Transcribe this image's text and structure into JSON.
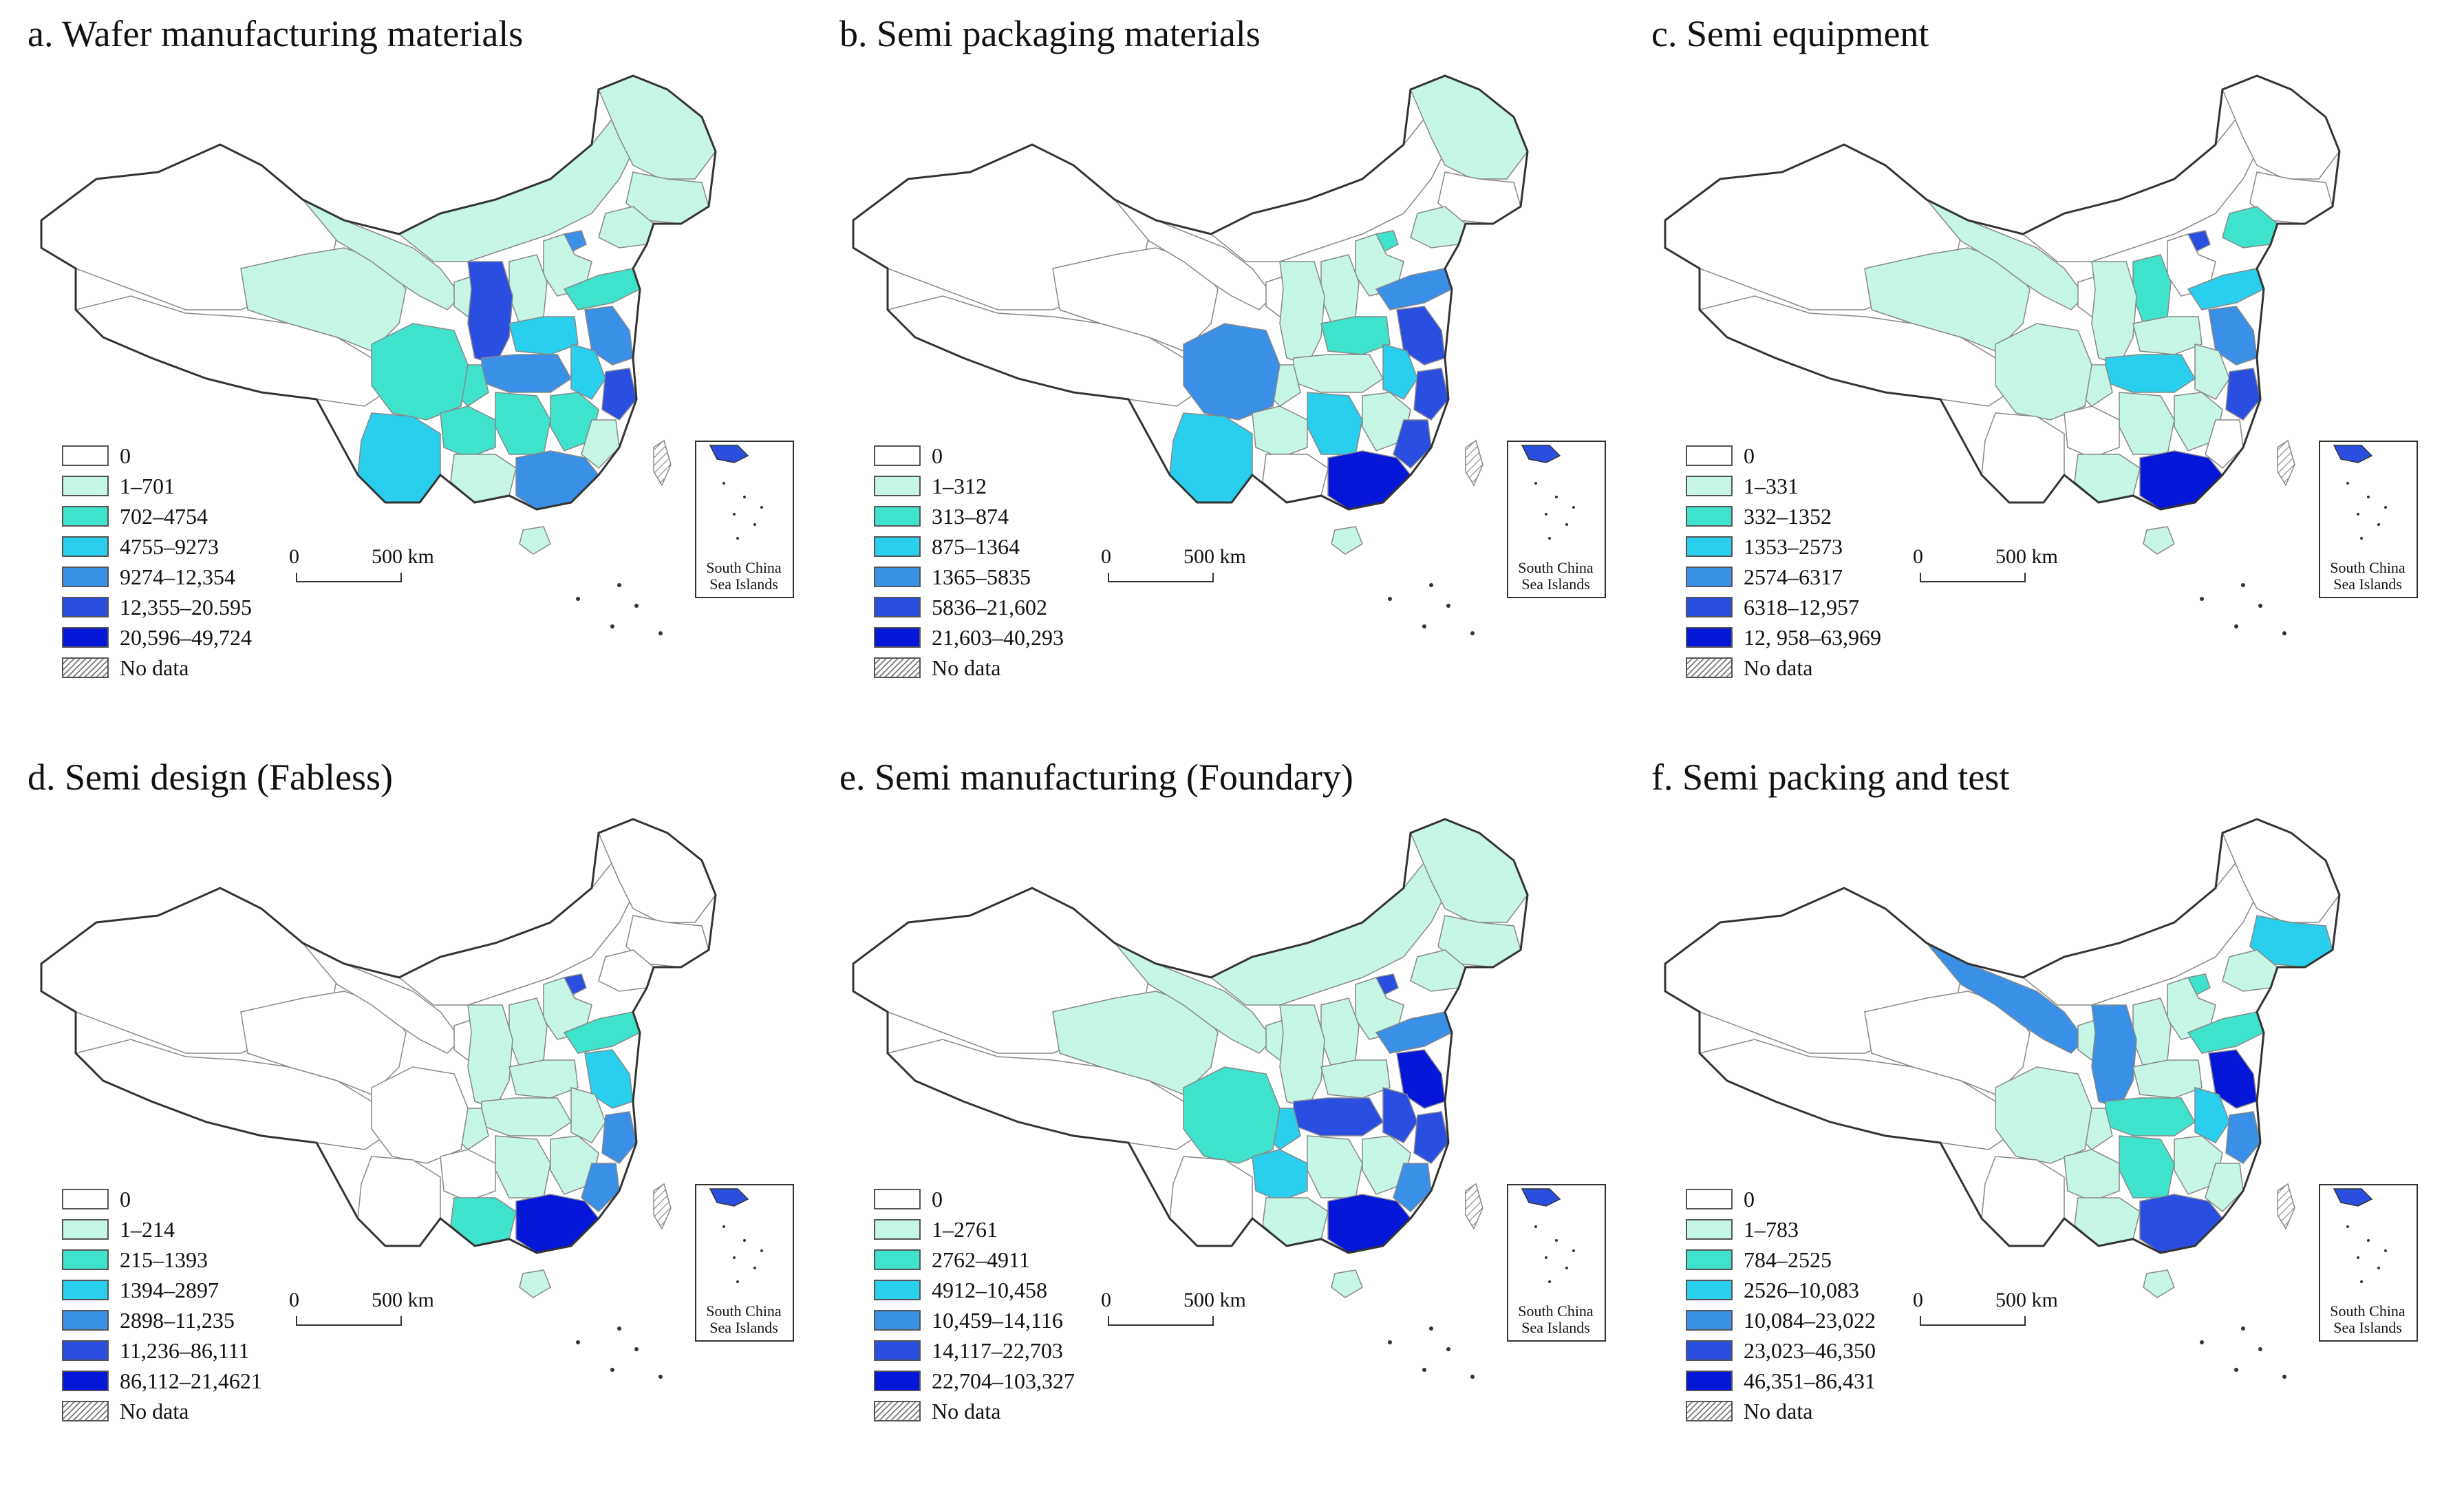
{
  "panels": [
    {
      "title": "a. Wafer manufacturing materials",
      "legend": [
        "0",
        "1–701",
        "702–4754",
        "4755–9273",
        "9274–12,354",
        "12,355–20.595",
        "20,596–49,724",
        "No data"
      ],
      "level_by_region": {
        "xj": 0,
        "xz": 0,
        "qh": 1,
        "gs": 1,
        "nm": 1,
        "hlj": 1,
        "jl": 1,
        "ln": 1,
        "hb": 1,
        "sx": 1,
        "sax": 5,
        "nx": 1,
        "sc": 2,
        "cq": 2,
        "yn": 3,
        "gz": 2,
        "gx": 1,
        "gd": 4,
        "hn": 2,
        "hub": 4,
        "henan": 3,
        "sd": 2,
        "js": 4,
        "zj": 5,
        "ah": 3,
        "jx": 2,
        "fj": 1,
        "bj": 4,
        "hi": 1,
        "tw": -1
      }
    },
    {
      "title": "b. Semi packaging materials",
      "legend": [
        "0",
        "1–312",
        "313–874",
        "875–1364",
        "1365–5835",
        "5836–21,602",
        "21,603–40,293",
        "No data"
      ],
      "level_by_region": {
        "xj": 0,
        "xz": 0,
        "qh": 0,
        "gs": 0,
        "nm": 0,
        "hlj": 1,
        "jl": 0,
        "ln": 1,
        "hb": 1,
        "sx": 1,
        "sax": 1,
        "nx": 0,
        "sc": 4,
        "cq": 1,
        "yn": 3,
        "gz": 1,
        "gx": 0,
        "gd": 6,
        "hn": 3,
        "hub": 1,
        "henan": 2,
        "sd": 4,
        "js": 5,
        "zj": 5,
        "ah": 3,
        "jx": 1,
        "fj": 5,
        "bj": 2,
        "hi": 1,
        "tw": -1
      }
    },
    {
      "title": "c. Semi equipment",
      "legend": [
        "0",
        "1–331",
        "332–1352",
        "1353–2573",
        "2574–6317",
        "6318–12,957",
        "12, 958–63,969",
        "No data"
      ],
      "level_by_region": {
        "xj": 0,
        "xz": 0,
        "qh": 1,
        "gs": 1,
        "nm": 0,
        "hlj": 0,
        "jl": 0,
        "ln": 2,
        "hb": 0,
        "sx": 2,
        "sax": 1,
        "nx": 0,
        "sc": 1,
        "cq": 1,
        "yn": 0,
        "gz": 0,
        "gx": 1,
        "gd": 6,
        "hn": 1,
        "hub": 3,
        "henan": 1,
        "sd": 3,
        "js": 4,
        "zj": 5,
        "ah": 1,
        "jx": 1,
        "fj": 0,
        "bj": 5,
        "hi": 1,
        "tw": -1
      }
    },
    {
      "title": "d. Semi design (Fabless)",
      "legend": [
        "0",
        "1–214",
        "215–1393",
        "1394–2897",
        "2898–11,235",
        "11,236–86,111",
        "86,112–21,4621",
        "No data"
      ],
      "level_by_region": {
        "xj": 0,
        "xz": 0,
        "qh": 0,
        "gs": 0,
        "nm": 0,
        "hlj": 0,
        "jl": 0,
        "ln": 0,
        "hb": 1,
        "sx": 1,
        "sax": 1,
        "nx": 0,
        "sc": 0,
        "cq": 1,
        "yn": 0,
        "gz": 0,
        "gx": 2,
        "gd": 6,
        "hn": 1,
        "hub": 1,
        "henan": 1,
        "sd": 2,
        "js": 3,
        "zj": 4,
        "ah": 1,
        "jx": 1,
        "fj": 4,
        "bj": 5,
        "hi": 1,
        "tw": -1
      }
    },
    {
      "title": "e. Semi manufacturing (Foundary)",
      "legend": [
        "0",
        "1–2761",
        "2762–4911",
        "4912–10,458",
        "10,459–14,116",
        "14,117–22,703",
        "22,704–103,327",
        "No data"
      ],
      "level_by_region": {
        "xj": 0,
        "xz": 0,
        "qh": 1,
        "gs": 1,
        "nm": 1,
        "hlj": 1,
        "jl": 1,
        "ln": 1,
        "hb": 1,
        "sx": 1,
        "sax": 1,
        "nx": 1,
        "sc": 2,
        "cq": 3,
        "yn": 0,
        "gz": 3,
        "gx": 1,
        "gd": 6,
        "hn": 1,
        "hub": 5,
        "henan": 1,
        "sd": 4,
        "js": 6,
        "zj": 5,
        "ah": 5,
        "jx": 1,
        "fj": 4,
        "bj": 5,
        "hi": 1,
        "tw": -1
      }
    },
    {
      "title": "f. Semi packing and test",
      "legend": [
        "0",
        "1–783",
        "784–2525",
        "2526–10,083",
        "10,084–23,022",
        "23,023–46,350",
        "46,351–86,431",
        "No data"
      ],
      "level_by_region": {
        "xj": 0,
        "xz": 0,
        "qh": 0,
        "gs": 4,
        "nm": 0,
        "hlj": 0,
        "jl": 3,
        "ln": 1,
        "hb": 1,
        "sx": 1,
        "sax": 4,
        "nx": 1,
        "sc": 1,
        "cq": 1,
        "yn": 0,
        "gz": 1,
        "gx": 1,
        "gd": 5,
        "hn": 2,
        "hub": 2,
        "henan": 1,
        "sd": 2,
        "js": 6,
        "zj": 4,
        "ah": 3,
        "jx": 1,
        "fj": 1,
        "bj": 2,
        "hi": 1,
        "tw": -1
      }
    }
  ],
  "scale_zero": "0",
  "scale_label": "500 km",
  "inset_label_line1": "South China",
  "inset_label_line2": "Sea Islands",
  "colors": [
    "#ffffff",
    "#c5f6e6",
    "#3fe3cc",
    "#29cfec",
    "#3a8fe6",
    "#2a4fe0",
    "#0416d8"
  ],
  "hatch_color": "#777777",
  "border_color": "#888888",
  "outline_color": "#333333"
}
